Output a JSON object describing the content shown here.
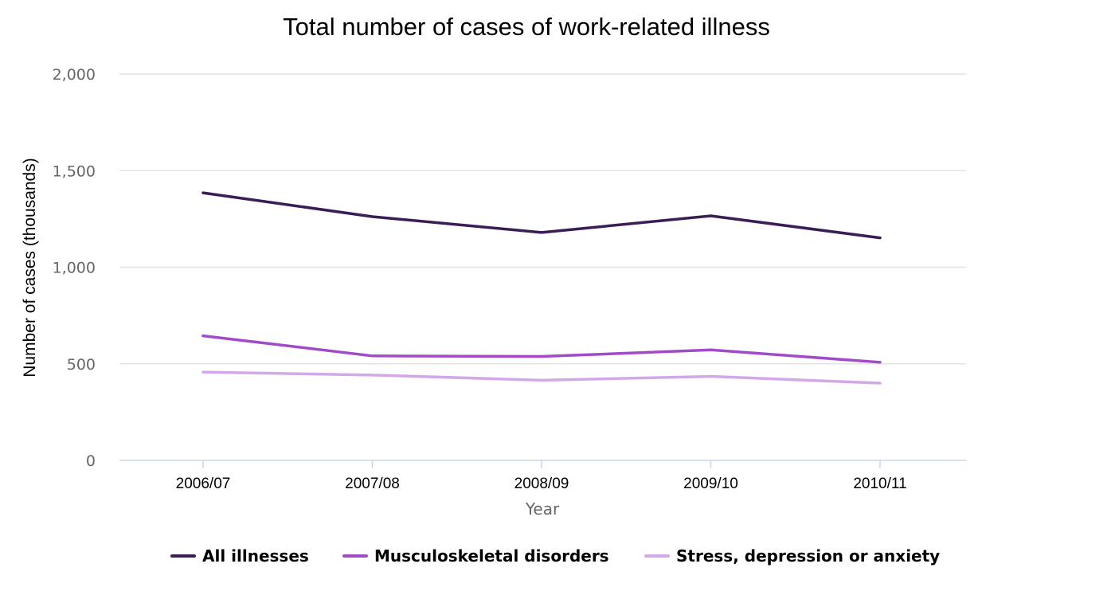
{
  "chart_data": {
    "type": "line",
    "title": "Total number of cases of work-related illness",
    "xlabel": "Year",
    "ylabel": "Number of cases (thousands)",
    "categories": [
      "2006/07",
      "2007/08",
      "2008/09",
      "2009/10",
      "2010/11"
    ],
    "ylim": [
      0,
      2000
    ],
    "yticks": [
      0,
      500,
      1000,
      1500,
      2000
    ],
    "ytick_labels": [
      "0",
      "500",
      "1,000",
      "1,500",
      "2,000"
    ],
    "grid": true,
    "legend_position": "bottom",
    "series": [
      {
        "name": "All illnesses",
        "color": "#3b1d55",
        "values": [
          1385,
          1262,
          1180,
          1266,
          1152
        ]
      },
      {
        "name": "Musculoskeletal disorders",
        "color": "#a24bc9",
        "values": [
          645,
          541,
          538,
          572,
          508
        ]
      },
      {
        "name": "Stress, depression or anxiety",
        "color": "#d2a8e8",
        "values": [
          457,
          442,
          415,
          435,
          400
        ]
      }
    ]
  }
}
